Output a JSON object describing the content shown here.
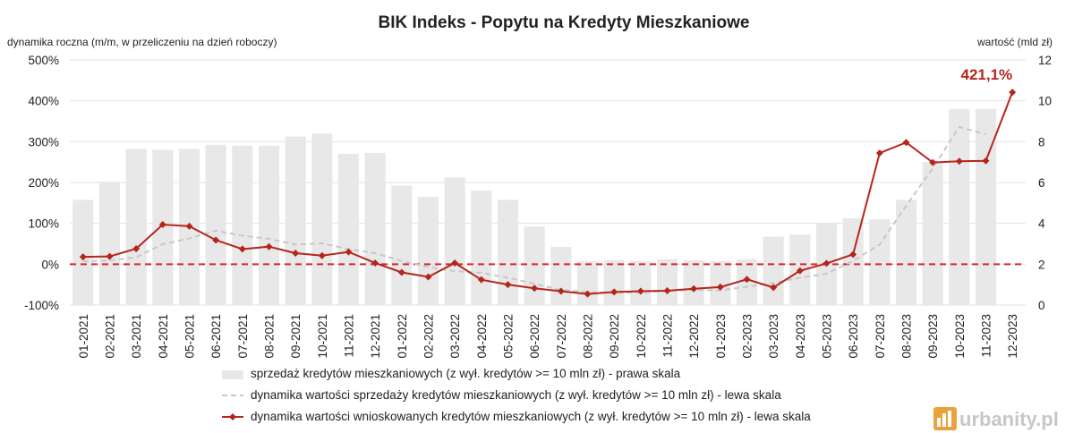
{
  "chart_data": {
    "type": "bar",
    "title": "BIK Indeks - Popytu na Kredyty Mieszkaniowe",
    "ylabel_left": "dynamika roczna (m/m, w przeliczeniu na dzień roboczy)",
    "ylabel_right": "wartość (mld zł)",
    "left_ticks": [
      "-100%",
      "0%",
      "100%",
      "200%",
      "300%",
      "400%",
      "500%"
    ],
    "right_ticks": [
      "0",
      "2",
      "4",
      "6",
      "8",
      "10",
      "12"
    ],
    "ylim_left": [
      -100,
      500
    ],
    "ylim_right": [
      0,
      12
    ],
    "grid": true,
    "legend_position": "bottom",
    "zero_line_color": "#d9262b",
    "categories": [
      "01-2021",
      "02-2021",
      "03-2021",
      "04-2021",
      "05-2021",
      "06-2021",
      "07-2021",
      "08-2021",
      "09-2021",
      "10-2021",
      "11-2021",
      "12-2021",
      "01-2022",
      "02-2022",
      "03-2022",
      "04-2022",
      "05-2022",
      "06-2022",
      "07-2022",
      "08-2022",
      "09-2022",
      "10-2022",
      "11-2022",
      "12-2022",
      "01-2023",
      "02-2023",
      "03-2023",
      "04-2023",
      "05-2023",
      "06-2023",
      "07-2023",
      "08-2023",
      "09-2023",
      "10-2023",
      "11-2023",
      "12-2023"
    ],
    "series": [
      {
        "name": "sprzedaż kredytów mieszkaniowych (z wył. kredytów >= 10 mln zł) - prawa skala",
        "type": "bar",
        "axis": "right",
        "color": "#e8e8e8",
        "values": [
          5.15,
          6.0,
          7.65,
          7.6,
          7.65,
          7.85,
          7.8,
          7.8,
          8.25,
          8.4,
          7.4,
          7.45,
          5.85,
          5.3,
          6.25,
          5.6,
          5.15,
          3.85,
          2.85,
          2.15,
          2.2,
          2.15,
          2.25,
          2.2,
          2.15,
          2.25,
          3.35,
          3.45,
          4.0,
          4.25,
          4.2,
          5.15,
          7.0,
          9.6,
          9.6,
          null
        ]
      },
      {
        "name": "dynamika wartości sprzedaży kredytów mieszkaniowych (z wył. kredytów >= 10 mln zł) - lewa skala",
        "type": "line",
        "style": "dashed",
        "axis": "left",
        "color": "#c8c8c8",
        "values": [
          7,
          9,
          17,
          49,
          63,
          82,
          70,
          62,
          48,
          51,
          37,
          27,
          8,
          -7,
          -17,
          -21,
          -33,
          -48,
          -63,
          -68,
          -70,
          -69,
          -65,
          -63,
          -64,
          -55,
          -46,
          -33,
          -23,
          8,
          48,
          143,
          235,
          336,
          318,
          null
        ]
      },
      {
        "name": "dynamika wartości wnioskowanych kredytów mieszkaniowych (z wył. kredytów >= 10 mln zł) - lewa skala",
        "type": "line",
        "style": "solid-markers",
        "axis": "left",
        "color": "#b5251c",
        "values": [
          18,
          19,
          38,
          97,
          93,
          59,
          37,
          43,
          27,
          21,
          30,
          3,
          -20,
          -31,
          3,
          -38,
          -50,
          -59,
          -66,
          -73,
          -68,
          -66,
          -65,
          -60,
          -56,
          -37,
          -57,
          -16,
          2,
          24,
          272,
          298,
          249,
          252,
          253,
          421
        ]
      }
    ],
    "annotations": [
      {
        "text": "421,1%",
        "target": "12-2023"
      }
    ]
  },
  "watermark": {
    "text": "urbanity.pl",
    "color": "#c7c7c7",
    "accent": "#e8a33a"
  }
}
